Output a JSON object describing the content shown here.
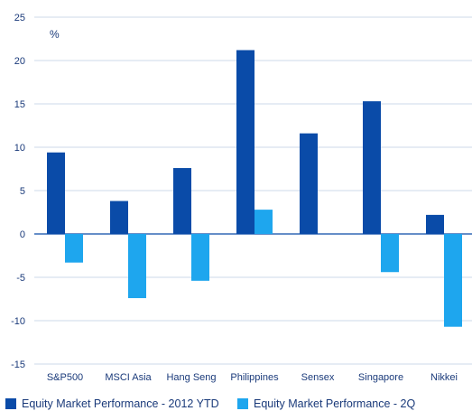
{
  "chart_data": {
    "type": "bar",
    "title": "",
    "xlabel": "",
    "ylabel": "",
    "unit": "%",
    "categories": [
      "S&P500",
      "MSCI Asia",
      "Hang Seng",
      "Philippines",
      "Sensex",
      "Singapore",
      "Nikkei"
    ],
    "series": [
      {
        "name": "Equity Market Performance - 2012 YTD",
        "color": "#0a4ba8",
        "values": [
          9.4,
          3.8,
          7.6,
          21.2,
          11.6,
          15.3,
          2.2
        ]
      },
      {
        "name": "Equity Market Performance - 2Q",
        "color": "#1ea6ee",
        "values": [
          -3.3,
          -7.4,
          -5.4,
          2.8,
          0,
          -4.4,
          -10.7
        ]
      }
    ],
    "ylim": [
      -15,
      25
    ],
    "yticks": [
      "25",
      "20",
      "15",
      "10",
      "5",
      "0",
      "-5",
      "-10",
      "-15"
    ],
    "grid": true,
    "legend_position": "bottom"
  }
}
